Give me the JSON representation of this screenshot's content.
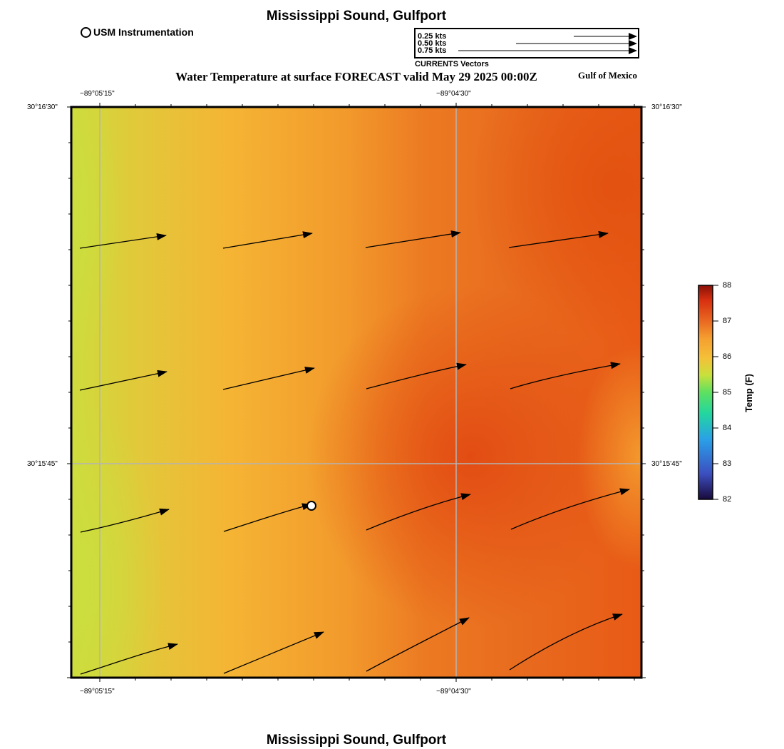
{
  "header": {
    "title": "Mississippi Sound, Gulfport",
    "subtitle": "Water Temperature at surface FORECAST valid May 29 2025 00:00Z",
    "region": "Gulf of Mexico",
    "footer_title": "Mississippi Sound, Gulfport"
  },
  "legend": {
    "usm_label": "USM Instrumentation",
    "vector_caption": "CURRENTS Vectors",
    "vector_scale": [
      {
        "label": "0.25 kts",
        "speed": 0.25
      },
      {
        "label": "0.50 kts",
        "speed": 0.5
      },
      {
        "label": "0.75 kts",
        "speed": 0.75
      }
    ]
  },
  "axes": {
    "lon_labels": [
      "−89°05'15\"",
      "−89°04'30\""
    ],
    "lat_labels": [
      "30°16'30\"",
      "30°15'45\""
    ]
  },
  "colorbar": {
    "title": "Temp (F)",
    "min": 82,
    "max": 88,
    "ticks": [
      "88",
      "87",
      "86",
      "85",
      "84",
      "83",
      "82"
    ],
    "stops": [
      "#1a0a3c",
      "#3c4fc0",
      "#2aa0e8",
      "#22d6a0",
      "#5ee060",
      "#c8e03c",
      "#f5c038",
      "#f5a030",
      "#e86420",
      "#d83010",
      "#8a1008"
    ]
  },
  "station": {
    "label": "USM Instrumentation"
  },
  "colors": {
    "warm_west": "#cfdc3c",
    "mid": "#f5b030",
    "hot": "#e65515",
    "frame": "#000000",
    "grid": "#b4b4b4"
  }
}
